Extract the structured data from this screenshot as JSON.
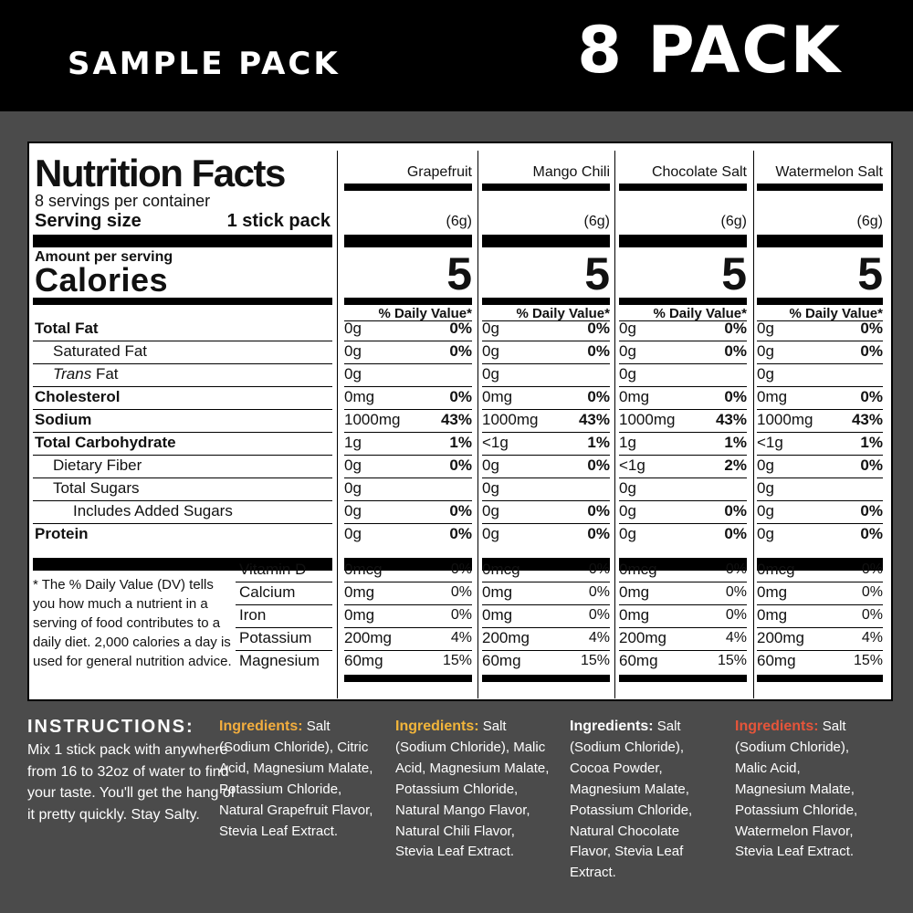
{
  "banner": {
    "left": "SAMPLE PACK",
    "right": "8 PACK"
  },
  "label": {
    "title": "Nutrition Facts",
    "servings": "8 servings per container",
    "serving_size_label": "Serving size",
    "serving_size_value": "1 stick pack",
    "amount_per_serving": "Amount per serving",
    "calories_label": "Calories",
    "dv_header": "% Daily Value*",
    "nutrients": [
      "Total Fat",
      "Saturated Fat",
      "Trans",
      "Fat",
      "Cholesterol",
      "Sodium",
      "Total Carbohydrate",
      "Dietary Fiber",
      "Total Sugars",
      "Includes Added Sugars",
      "Protein"
    ],
    "minerals": [
      "Vitamin D",
      "Calcium",
      "Iron",
      "Potassium",
      "Magnesium"
    ],
    "footnote": "* The % Daily Value (DV) tells you how much a nutrient in a serving of food contributes to a daily diet. 2,000 calories a day is used for general nutrition advice."
  },
  "flavors": [
    {
      "name": "Grapefruit",
      "serving": "(6g)",
      "calories": "5",
      "rows": [
        [
          "0g",
          "0%"
        ],
        [
          "0g",
          "0%"
        ],
        [
          "0g",
          ""
        ],
        [
          "0mg",
          "0%"
        ],
        [
          "1000mg",
          "43%"
        ],
        [
          "1g",
          "1%"
        ],
        [
          "0g",
          "0%"
        ],
        [
          "0g",
          ""
        ],
        [
          "0g",
          "0%"
        ],
        [
          "0g",
          "0%"
        ]
      ],
      "minerals": [
        [
          "0mcg",
          "0%"
        ],
        [
          "0mg",
          "0%"
        ],
        [
          "0mg",
          "0%"
        ],
        [
          "200mg",
          "4%"
        ],
        [
          "60mg",
          "15%"
        ]
      ],
      "ingredients_label": "Ingredients:",
      "ingredients_text": "Salt (Sodium Chloride), Citric Acid, Magnesium Malate, Potassium Chloride, Natural Grapefruit Flavor, Stevia Leaf Extract.",
      "label_color": "#f2ad3e"
    },
    {
      "name": "Mango Chili",
      "serving": "(6g)",
      "calories": "5",
      "rows": [
        [
          "0g",
          "0%"
        ],
        [
          "0g",
          "0%"
        ],
        [
          "0g",
          ""
        ],
        [
          "0mg",
          "0%"
        ],
        [
          "1000mg",
          "43%"
        ],
        [
          "<1g",
          "1%"
        ],
        [
          "0g",
          "0%"
        ],
        [
          "0g",
          ""
        ],
        [
          "0g",
          "0%"
        ],
        [
          "0g",
          "0%"
        ]
      ],
      "minerals": [
        [
          "0mcg",
          "0%"
        ],
        [
          "0mg",
          "0%"
        ],
        [
          "0mg",
          "0%"
        ],
        [
          "200mg",
          "4%"
        ],
        [
          "60mg",
          "15%"
        ]
      ],
      "ingredients_label": "Ingredients:",
      "ingredients_text": "Salt (Sodium Chloride), Malic Acid, Magnesium Malate, Potassium Chloride, Natural Mango Flavor, Natural Chili Flavor, Stevia Leaf Extract.",
      "label_color": "#f2b53a"
    },
    {
      "name": "Chocolate Salt",
      "serving": "(6g)",
      "calories": "5",
      "rows": [
        [
          "0g",
          "0%"
        ],
        [
          "0g",
          "0%"
        ],
        [
          "0g",
          ""
        ],
        [
          "0mg",
          "0%"
        ],
        [
          "1000mg",
          "43%"
        ],
        [
          "1g",
          "1%"
        ],
        [
          "<1g",
          "2%"
        ],
        [
          "0g",
          ""
        ],
        [
          "0g",
          "0%"
        ],
        [
          "0g",
          "0%"
        ]
      ],
      "minerals": [
        [
          "0mcg",
          "0%"
        ],
        [
          "0mg",
          "0%"
        ],
        [
          "0mg",
          "0%"
        ],
        [
          "200mg",
          "4%"
        ],
        [
          "60mg",
          "15%"
        ]
      ],
      "ingredients_label": "Ingredients:",
      "ingredients_text": "Salt (Sodium Chloride), Cocoa Powder, Magnesium Malate, Potassium Chloride, Natural Chocolate Flavor, Stevia Leaf Extract.",
      "label_color": "#ffffff"
    },
    {
      "name": "Watermelon Salt",
      "serving": "(6g)",
      "calories": "5",
      "rows": [
        [
          "0g",
          "0%"
        ],
        [
          "0g",
          "0%"
        ],
        [
          "0g",
          ""
        ],
        [
          "0mg",
          "0%"
        ],
        [
          "1000mg",
          "43%"
        ],
        [
          "<1g",
          "1%"
        ],
        [
          "0g",
          "0%"
        ],
        [
          "0g",
          ""
        ],
        [
          "0g",
          "0%"
        ],
        [
          "0g",
          "0%"
        ]
      ],
      "minerals": [
        [
          "0mcg",
          "0%"
        ],
        [
          "0mg",
          "0%"
        ],
        [
          "0mg",
          "0%"
        ],
        [
          "200mg",
          "4%"
        ],
        [
          "60mg",
          "15%"
        ]
      ],
      "ingredients_label": "Ingredients:",
      "ingredients_text": "Salt (Sodium Chloride), Malic Acid, Magnesium Malate, Potassium Chloride, Watermelon Flavor, Stevia Leaf Extract.",
      "label_color": "#e6553a"
    }
  ],
  "instructions": {
    "heading": "INSTRUCTIONS:",
    "body": "Mix 1 stick pack with anywhere from 16 to 32oz of water to find your taste. You'll get the hang of it pretty quickly. Stay Salty."
  }
}
